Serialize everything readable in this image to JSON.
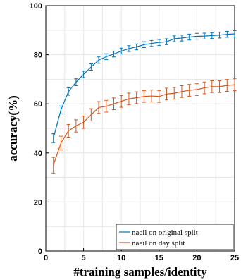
{
  "chart_data": {
    "type": "line",
    "xlabel": "#training samples/identity",
    "ylabel": "accuracy(%)",
    "xlim": [
      0,
      25
    ],
    "ylim": [
      0,
      100
    ],
    "xticks": [
      0,
      5,
      10,
      15,
      20,
      25
    ],
    "yticks": [
      0,
      20,
      40,
      60,
      80,
      100
    ],
    "grid": true,
    "legend_position": "bottom-right",
    "series": [
      {
        "name": "naeil on original split",
        "color": "#0072BD",
        "x": [
          1,
          2,
          3,
          4,
          5,
          6,
          7,
          8,
          9,
          10,
          11,
          12,
          13,
          14,
          15,
          16,
          17,
          18,
          19,
          20,
          21,
          22,
          23,
          24,
          25
        ],
        "y": [
          46,
          57.5,
          65,
          68.8,
          72,
          75,
          77.8,
          79.2,
          80.3,
          81.5,
          82.5,
          83.2,
          84.1,
          84.6,
          85,
          85.3,
          86.5,
          86.8,
          87.2,
          87.5,
          87.6,
          87.8,
          88,
          88.3,
          88.5
        ],
        "err": [
          1.8,
          1.6,
          1.5,
          1.4,
          1.3,
          1.3,
          1.3,
          1.2,
          1.2,
          1.2,
          1.2,
          1.2,
          1.2,
          1.2,
          1.2,
          1.2,
          1.2,
          1.2,
          1.2,
          1.2,
          1.2,
          1.2,
          1.2,
          1.2,
          1.3
        ]
      },
      {
        "name": "naeil on day split",
        "color": "#D95319",
        "x": [
          1,
          2,
          3,
          4,
          5,
          6,
          7,
          8,
          9,
          10,
          11,
          12,
          13,
          14,
          15,
          16,
          17,
          18,
          19,
          20,
          21,
          22,
          23,
          24,
          25
        ],
        "y": [
          35,
          44,
          49,
          51,
          52.5,
          55.5,
          58.5,
          59,
          60,
          61,
          62,
          62.5,
          63,
          63.2,
          63,
          64,
          64.3,
          65,
          65.5,
          65.8,
          66.5,
          67,
          67,
          67.5,
          67.8
        ],
        "err": [
          3.2,
          2.8,
          2.6,
          2.5,
          2.5,
          2.5,
          2.4,
          2.4,
          2.4,
          2.4,
          2.4,
          2.4,
          2.4,
          2.4,
          2.4,
          2.4,
          2.4,
          2.4,
          2.4,
          2.4,
          2.4,
          2.4,
          2.4,
          2.4,
          2.4
        ]
      }
    ]
  }
}
